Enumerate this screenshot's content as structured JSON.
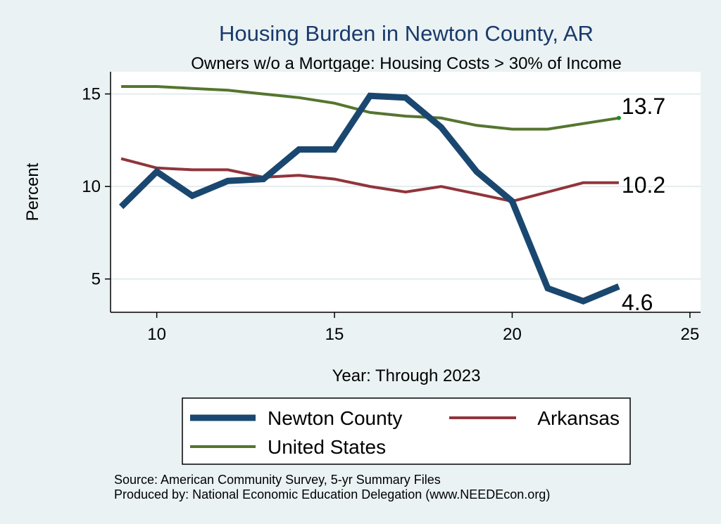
{
  "chart_data": {
    "type": "line",
    "title": "Housing Burden in Newton County, AR",
    "subtitle": "Owners w/o a Mortgage: Housing Costs > 30% of Income",
    "xlabel": "Year: Through 2023",
    "ylabel": "Percent",
    "xlim": [
      8.7,
      25.3
    ],
    "ylim": [
      3.2,
      16.2
    ],
    "xticks": [
      10,
      15,
      20,
      25
    ],
    "yticks": [
      5,
      10,
      15
    ],
    "grid": true,
    "legend_position": "bottom",
    "x": [
      9,
      10,
      11,
      12,
      13,
      14,
      15,
      16,
      17,
      18,
      19,
      20,
      21,
      22,
      23
    ],
    "series": [
      {
        "name": "Newton County",
        "color": "#1a476f",
        "values": [
          8.9,
          10.8,
          9.5,
          10.3,
          10.4,
          12.0,
          12.0,
          14.9,
          14.8,
          13.2,
          10.8,
          9.2,
          4.5,
          3.8,
          4.6
        ],
        "end_label": "4.6"
      },
      {
        "name": "Arkansas",
        "color": "#90353b",
        "values": [
          11.5,
          11.0,
          10.9,
          10.9,
          10.5,
          10.6,
          10.4,
          10.0,
          9.7,
          10.0,
          9.6,
          9.2,
          9.7,
          10.2,
          10.2
        ],
        "end_label": "10.2"
      },
      {
        "name": "United States",
        "color": "#55752f",
        "values": [
          15.4,
          15.4,
          15.3,
          15.2,
          15.0,
          14.8,
          14.5,
          14.0,
          13.8,
          13.7,
          13.3,
          13.1,
          13.1,
          13.4,
          13.7
        ],
        "end_label": "13.7"
      }
    ]
  },
  "source": {
    "line1": "Source: American Community Survey, 5-yr Summary Files",
    "line2": "Produced by: National Economic Education Delegation (www.NEEDEcon.org)"
  }
}
